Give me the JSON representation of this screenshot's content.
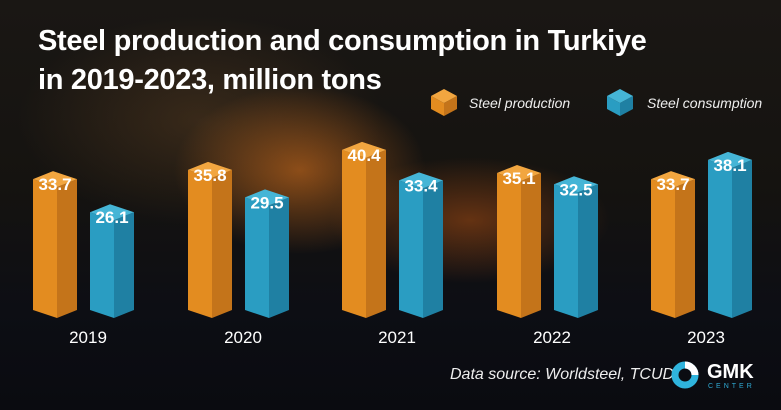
{
  "title_line1": "Steel production and consumption in Turkiye",
  "title_line2": "in 2019-2023, million tons",
  "source": "Data source: Worldsteel, TCUD",
  "logo": {
    "name": "GMK",
    "sub": "CENTER"
  },
  "colors": {
    "production": "#e38c20",
    "consumption": "#2a9dc2"
  },
  "chart_data": {
    "type": "bar",
    "style": "3d-columns",
    "categories": [
      "2019",
      "2020",
      "2021",
      "2022",
      "2023"
    ],
    "series": [
      {
        "name": "Steel production",
        "values": [
          33.7,
          35.8,
          40.4,
          35.1,
          33.7
        ]
      },
      {
        "name": "Steel  consumption",
        "values": [
          26.1,
          29.5,
          33.4,
          32.5,
          38.1
        ]
      }
    ],
    "title": "Steel production and consumption in Turkiye in 2019-2023, million tons",
    "legend": "top-right",
    "grid": false,
    "data_labels": true
  }
}
